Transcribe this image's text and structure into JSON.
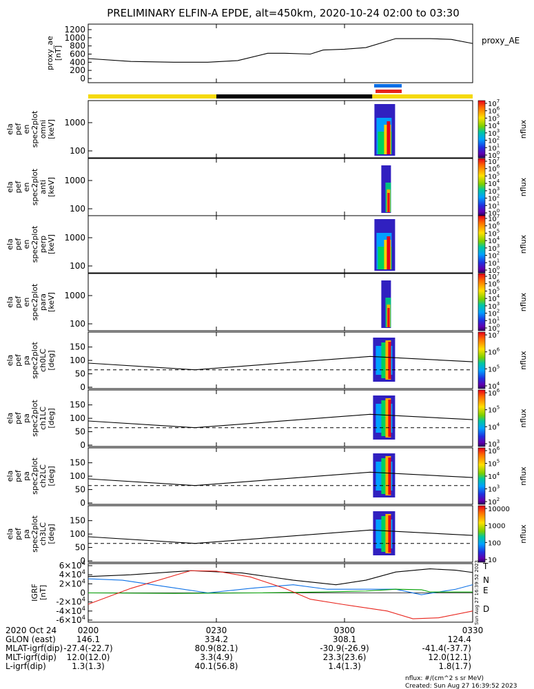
{
  "title": "PRELIMINARY ELFIN-A EPDE, alt=450km, 2020-10-24 02:00 to 03:30",
  "colors": {
    "yellow": "#f5d90a",
    "black": "#000000",
    "blue": "#0a6fe6",
    "red": "#e8231b",
    "green": "#00a000"
  },
  "ae_panel": {
    "ylabel": [
      "proxy_ae",
      "[nT]"
    ],
    "yticks": [
      "0",
      "200",
      "400",
      "600",
      "800",
      "1000",
      "1200"
    ],
    "legend": "proxy_AE"
  },
  "spec_panels": [
    {
      "ylabel": [
        "ela",
        "pef",
        "en",
        "spec2plot",
        "omni",
        "[keV]"
      ],
      "yticks": [
        "100",
        "1000"
      ],
      "cbar": [
        "10^7",
        "10^6",
        "10^5",
        "10^4",
        "10^3",
        "10^2",
        "10^1",
        "10^0"
      ],
      "cbar_label": "nflux"
    },
    {
      "ylabel": [
        "ela",
        "pef",
        "en",
        "spec2plot",
        "anti",
        "[keV]"
      ],
      "yticks": [
        "100",
        "1000"
      ],
      "cbar": [
        "10^7",
        "10^6",
        "10^5",
        "10^4",
        "10^3",
        "10^2",
        "10^1",
        "10^0"
      ],
      "cbar_label": "nflux"
    },
    {
      "ylabel": [
        "ela",
        "pef",
        "en",
        "spec2plot",
        "perp",
        "[keV]"
      ],
      "yticks": [
        "100",
        "1000"
      ],
      "cbar": [
        "10^7",
        "10^6",
        "10^5",
        "10^4",
        "10^3",
        "10^2",
        "10^1",
        "10^0"
      ],
      "cbar_label": "nflux"
    },
    {
      "ylabel": [
        "ela",
        "pef",
        "en",
        "spec2plot",
        "para",
        "[keV]"
      ],
      "yticks": [
        "100",
        "1000"
      ],
      "cbar": [
        "10^7",
        "10^6",
        "10^5",
        "10^4",
        "10^3",
        "10^2",
        "10^1",
        "10^0"
      ],
      "cbar_label": "nflux"
    }
  ],
  "pa_panels": [
    {
      "ylabel": [
        "ela",
        "pef",
        "pa",
        "spec2plot",
        "ch0LC",
        "[deg]"
      ],
      "yticks": [
        "0",
        "50",
        "100",
        "150"
      ],
      "cbar": [
        "10^7",
        "10^6",
        "10^5",
        "10^4"
      ],
      "cbar_label": "nflux"
    },
    {
      "ylabel": [
        "ela",
        "pef",
        "pa",
        "spec2plot",
        "ch1LC",
        "[deg]"
      ],
      "yticks": [
        "0",
        "50",
        "100",
        "150"
      ],
      "cbar": [
        "10^6",
        "10^5",
        "10^4",
        "10^3"
      ],
      "cbar_label": "nflux"
    },
    {
      "ylabel": [
        "ela",
        "pef",
        "pa",
        "spec2plot",
        "ch2LC",
        "[deg]"
      ],
      "yticks": [
        "0",
        "50",
        "100",
        "150"
      ],
      "cbar": [
        "10^6",
        "10^5",
        "10^4",
        "10^3",
        "10^2"
      ],
      "cbar_label": "nflux"
    },
    {
      "ylabel": [
        "ela",
        "pef",
        "pa",
        "spec2plot",
        "ch3LC",
        "[deg]"
      ],
      "yticks": [
        "0",
        "50",
        "100",
        "150"
      ],
      "cbar": [
        "10000",
        "1000",
        "100",
        "10"
      ],
      "cbar_label": "nflux"
    }
  ],
  "igrf_panel": {
    "ylabel": [
      "IGRF",
      "[nT]"
    ],
    "yticks": [
      "-6×10^4",
      "-4×10^4",
      "-2×10^4",
      "0",
      "2×10^4",
      "4×10^4",
      "6×10^4"
    ],
    "legend": [
      "T",
      "N",
      "E",
      "D"
    ],
    "side_text": "Sun Aug 27 16:39:52 2023"
  },
  "xaxis": {
    "row_labels": [
      "2020 Oct 24",
      "GLON (east)",
      "MLAT-igrf(dip)",
      "MLT-igrf(dip)",
      "L-igrf(dip)"
    ],
    "columns": [
      {
        "time": "0200",
        "vals": [
          "146.1",
          "-27.4(-22.7)",
          "12.0(12.0)",
          "1.3(1.3)"
        ]
      },
      {
        "time": "0230",
        "vals": [
          "334.2",
          "80.9(82.1)",
          "3.3(4.9)",
          "40.1(56.8)"
        ]
      },
      {
        "time": "0300",
        "vals": [
          "308.1",
          "-30.9(-26.9)",
          "23.3(23.6)",
          "1.4(1.3)"
        ]
      },
      {
        "time": "0330",
        "vals": [
          "124.4",
          "-41.4(-37.7)",
          "12.0(12.1)",
          "1.8(1.7)"
        ]
      }
    ]
  },
  "footer": {
    "units": "nflux: #/(cm^2 s sr MeV)",
    "created": "Created: Sun Aug 27 16:39:52 2023"
  },
  "chart_data": {
    "type": "line",
    "x_range_minutes_after_0200": [
      0,
      90
    ],
    "proxy_ae": {
      "x": [
        0,
        10,
        20,
        28,
        35,
        42,
        46,
        52,
        55,
        60,
        65,
        72,
        80,
        85,
        90
      ],
      "y": [
        490,
        420,
        400,
        400,
        440,
        620,
        620,
        600,
        700,
        720,
        760,
        980,
        980,
        960,
        860
      ],
      "ylim": [
        0,
        1200
      ]
    },
    "status_bar": [
      {
        "from": 0,
        "to": 30,
        "color": "yellow"
      },
      {
        "from": 30,
        "to": 66.5,
        "color": "black"
      },
      {
        "from": 66.5,
        "to": 90,
        "color": "yellow"
      }
    ],
    "science_zone": {
      "from": 67,
      "to": 74
    },
    "igrf": {
      "ylim": [
        -60000,
        60000
      ],
      "series": [
        {
          "name": "T",
          "color": "black",
          "x": [
            0,
            10,
            24,
            36,
            48,
            58,
            65,
            72,
            80,
            86,
            90
          ],
          "y": [
            36000,
            40000,
            49000,
            44000,
            28000,
            18000,
            28000,
            46000,
            53000,
            50000,
            45000
          ]
        },
        {
          "name": "N",
          "color": "blue",
          "x": [
            0,
            8,
            18,
            28,
            38,
            48,
            56,
            64,
            72,
            78,
            86,
            90
          ],
          "y": [
            31000,
            28000,
            14000,
            0,
            10000,
            18000,
            8000,
            8000,
            8000,
            -4000,
            8000,
            18000
          ]
        },
        {
          "name": "E",
          "color": "green",
          "x": [
            0,
            20,
            40,
            55,
            65,
            72,
            78,
            80,
            90
          ],
          "y": [
            0,
            -1000,
            0,
            2000,
            4000,
            8000,
            7000,
            2000,
            2000
          ]
        },
        {
          "name": "D",
          "color": "red",
          "x": [
            0,
            10,
            24,
            30,
            38,
            46,
            52,
            60,
            70,
            76,
            82,
            90
          ],
          "y": [
            -25000,
            10000,
            49000,
            48000,
            35000,
            10000,
            -14000,
            -26000,
            -40000,
            -57000,
            -55000,
            -40000
          ]
        }
      ]
    },
    "pa_lines": {
      "solid_ylim": [
        0,
        180
      ],
      "solid": {
        "x": [
          0,
          25,
          66,
          90
        ],
        "y": [
          90,
          65,
          115,
          95
        ]
      },
      "dashed_y": 65
    }
  }
}
